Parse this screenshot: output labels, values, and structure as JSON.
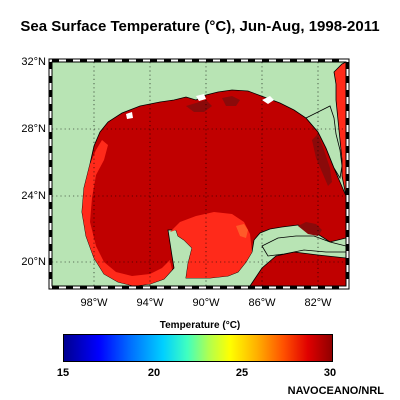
{
  "title": "Sea Surface Temperature (°C), Jun-Aug, 1998-2011",
  "map": {
    "lat_labels": [
      "32°N",
      "28°N",
      "24°N",
      "20°N"
    ],
    "lon_labels": [
      "98°W",
      "94°W",
      "90°W",
      "86°W",
      "82°W"
    ],
    "colors": {
      "land": "#b8e4b4",
      "sea_main": "#c00000",
      "sea_warm": "#8a0a0a",
      "sea_cool": "#ff2a1a",
      "sea_orange": "#ff5a28",
      "coast": "#000000"
    }
  },
  "colorbar": {
    "title": "Temperature (°C)",
    "ticks": [
      "15",
      "20",
      "25",
      "30"
    ],
    "range": [
      15,
      30
    ]
  },
  "credit": "NAVOCEANO/NRL"
}
